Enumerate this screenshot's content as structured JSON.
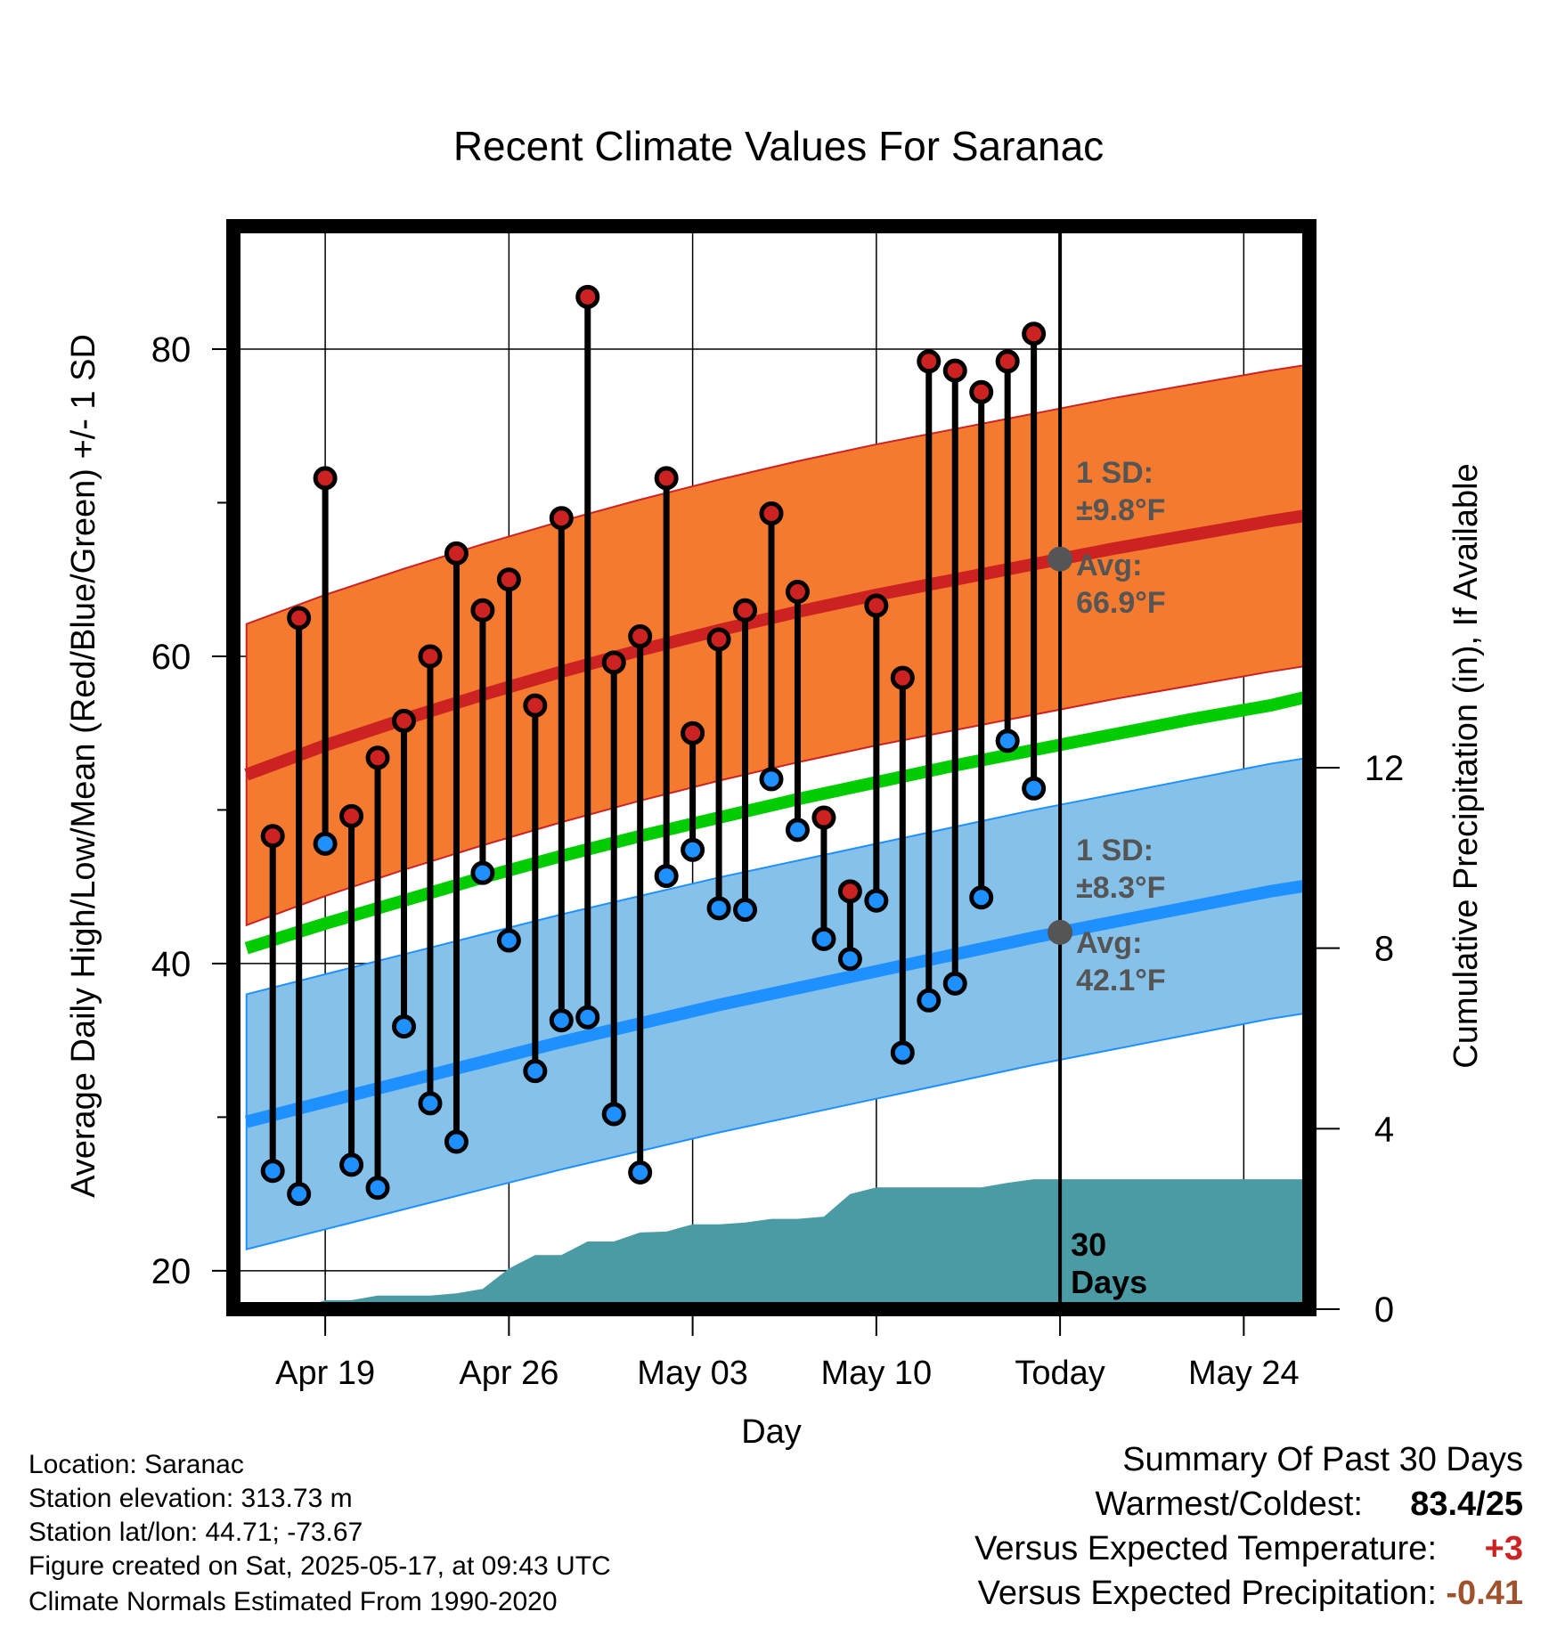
{
  "chart_data": {
    "type": "line",
    "title": "Recent Climate Values For Saranac",
    "xlabel": "Day",
    "ylabel": "Average Daily High/Low/Mean (Red/Blue/Green) +/- 1 SD",
    "y2label": "Cumulative Precipitation (in), If Available",
    "x_ticks": [
      "Apr 19",
      "Apr 26",
      "May 03",
      "May 10",
      "Today",
      "May 24"
    ],
    "y_ticks": [
      20,
      40,
      60,
      80
    ],
    "y2_ticks": [
      0,
      4,
      8,
      12
    ],
    "ylim": [
      17.5,
      88
    ],
    "y2lim": [
      0,
      24
    ],
    "xlim_days_from_today": [
      -31.5,
      9.5
    ],
    "today_marker_label": "30 Days",
    "high_band_label": {
      "sd": "1 SD:",
      "sd_value": "±9.8°F",
      "avg": "Avg:",
      "avg_value": "66.9°F"
    },
    "low_band_label": {
      "sd": "1 SD:",
      "sd_value": "±8.3°F",
      "avg": "Avg:",
      "avg_value": "42.1°F"
    },
    "normals": {
      "x": [
        -31,
        -28,
        -25,
        -22,
        -19,
        -16,
        -13,
        -10,
        -7,
        -4,
        -1,
        2,
        5,
        8,
        9.5
      ],
      "high_mean": [
        52.3,
        54.2,
        55.9,
        57.5,
        59.0,
        60.4,
        61.7,
        62.9,
        64.0,
        65.0,
        66.0,
        67.0,
        67.9,
        68.8,
        69.2
      ],
      "high_sd": 9.8,
      "low_mean": [
        29.7,
        31.0,
        32.3,
        33.6,
        34.9,
        36.1,
        37.3,
        38.4,
        39.5,
        40.6,
        41.7,
        42.7,
        43.7,
        44.7,
        45.1
      ],
      "low_sd": 8.3,
      "mean": [
        41.0,
        42.6,
        44.1,
        45.6,
        47.0,
        48.3,
        49.5,
        50.7,
        51.8,
        52.9,
        53.9,
        54.9,
        55.9,
        56.8,
        57.4
      ]
    },
    "series": [
      {
        "name": "High",
        "color": "#cc2222",
        "x": [
          -30,
          -29,
          -28,
          -27,
          -26,
          -25,
          -24,
          -23,
          -22,
          -21,
          -20,
          -19,
          -18,
          -17,
          -16,
          -15,
          -14,
          -13,
          -12,
          -11,
          -10,
          -9,
          -8,
          -7,
          -6,
          -5,
          -4,
          -3,
          -2,
          -1
        ],
        "values": [
          48.3,
          62.5,
          71.6,
          49.6,
          53.4,
          55.8,
          60.0,
          66.7,
          63.0,
          65.0,
          56.8,
          69.0,
          83.4,
          59.6,
          61.3,
          71.6,
          55.0,
          61.1,
          63.0,
          69.3,
          64.2,
          49.5,
          44.7,
          63.3,
          58.6,
          79.2,
          78.6,
          77.2,
          79.2,
          81.0
        ]
      },
      {
        "name": "Low",
        "color": "#1e90ff",
        "x": [
          -30,
          -29,
          -28,
          -27,
          -26,
          -25,
          -24,
          -23,
          -22,
          -21,
          -20,
          -19,
          -18,
          -17,
          -16,
          -15,
          -14,
          -13,
          -12,
          -11,
          -10,
          -9,
          -8,
          -7,
          -6,
          -5,
          -4,
          -3,
          -2,
          -1
        ],
        "values": [
          26.5,
          25.0,
          47.8,
          26.9,
          25.4,
          35.9,
          30.9,
          28.4,
          45.9,
          41.5,
          33.0,
          36.3,
          36.5,
          30.2,
          26.4,
          45.7,
          47.4,
          43.6,
          43.5,
          52.0,
          48.7,
          41.6,
          40.3,
          44.1,
          34.2,
          37.6,
          38.7,
          44.3,
          54.5,
          51.4
        ]
      },
      {
        "name": "Precipitation",
        "color": "#4a9ba3",
        "x": [
          -31,
          -30,
          -29,
          -28,
          -27,
          -26,
          -25,
          -24,
          -23,
          -22,
          -21,
          -20,
          -19,
          -18,
          -17,
          -16,
          -15,
          -14,
          -13,
          -12,
          -11,
          -10,
          -9,
          -8,
          -7,
          -6,
          -5,
          -4,
          -3,
          -2,
          -1,
          0,
          9.5
        ],
        "values": [
          0,
          0,
          0,
          0.2,
          0.2,
          0.3,
          0.3,
          0.3,
          0.35,
          0.45,
          0.9,
          1.2,
          1.2,
          1.5,
          1.5,
          1.7,
          1.72,
          1.88,
          1.88,
          1.92,
          2.0,
          2.0,
          2.05,
          2.55,
          2.7,
          2.7,
          2.7,
          2.7,
          2.7,
          2.8,
          2.88,
          2.88,
          2.88
        ]
      }
    ],
    "colors": {
      "high_band": "#f47a30",
      "high_line": "#cc2222",
      "low_band": "#85c1e9",
      "low_line": "#1e90ff",
      "mean_line": "#00cc00",
      "precip": "#4a9ba3",
      "label_gray": "#555555"
    }
  },
  "info": {
    "location": "Location: Saranac",
    "elevation": "Station elevation: 313.73 m",
    "latlon": "Station lat/lon: 44.71; -73.67",
    "created": "Figure created on Sat, 2025-05-17, at 09:43 UTC",
    "normals": "Climate Normals Estimated From 1990-2020"
  },
  "summary": {
    "title": "Summary Of Past 30 Days",
    "warmest_label": "Warmest/Coldest:",
    "warmest_value": "83.4/25",
    "temp_label": "Versus Expected Temperature:",
    "temp_value": "+3",
    "temp_color": "#cc2222",
    "precip_label": "Versus Expected Precipitation:",
    "precip_value": "-0.41",
    "precip_color": "#a0522d"
  }
}
